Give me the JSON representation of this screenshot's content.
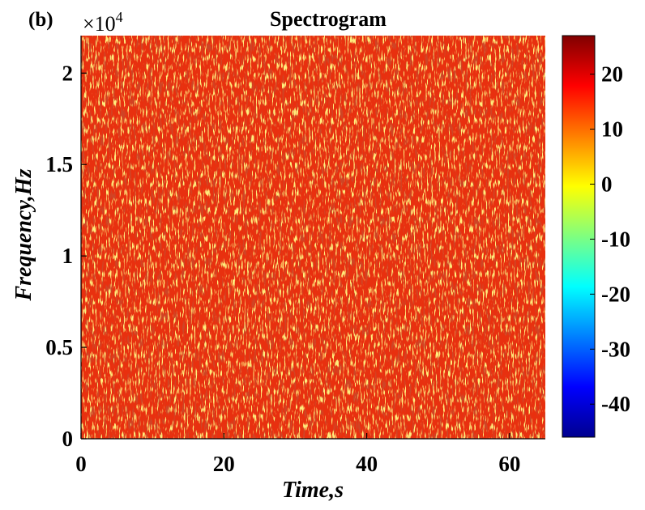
{
  "chart_data": {
    "type": "heatmap",
    "panel_label": "(b)",
    "title": "Spectrogram",
    "xlabel": "Time,s",
    "ylabel": "Frequency,Hz",
    "xlim": [
      0,
      65
    ],
    "ylim": [
      0,
      22050
    ],
    "x_ticks": [
      0,
      20,
      40,
      60
    ],
    "x_tick_labels": [
      "0",
      "20",
      "40",
      "60"
    ],
    "y_ticks": [
      0,
      5000,
      10000,
      15000,
      20000
    ],
    "y_tick_labels": [
      "0",
      "0.5",
      "1",
      "1.5",
      "2"
    ],
    "y_multiplier": {
      "base": "×10",
      "exponent": "4"
    },
    "colorbar": {
      "colormap": "jet",
      "clim": [
        -46,
        27
      ],
      "ticks": [
        20,
        10,
        0,
        -10,
        -20,
        -30,
        -40
      ],
      "tick_labels": [
        "20",
        "10",
        "0",
        "-10",
        "-20",
        "-30",
        "-40"
      ]
    },
    "fill": {
      "description_level_range_db": [
        8,
        27
      ],
      "dominant_colors": [
        "#e4260f",
        "#f24f12",
        "#b81807",
        "#f7c52a"
      ]
    }
  }
}
